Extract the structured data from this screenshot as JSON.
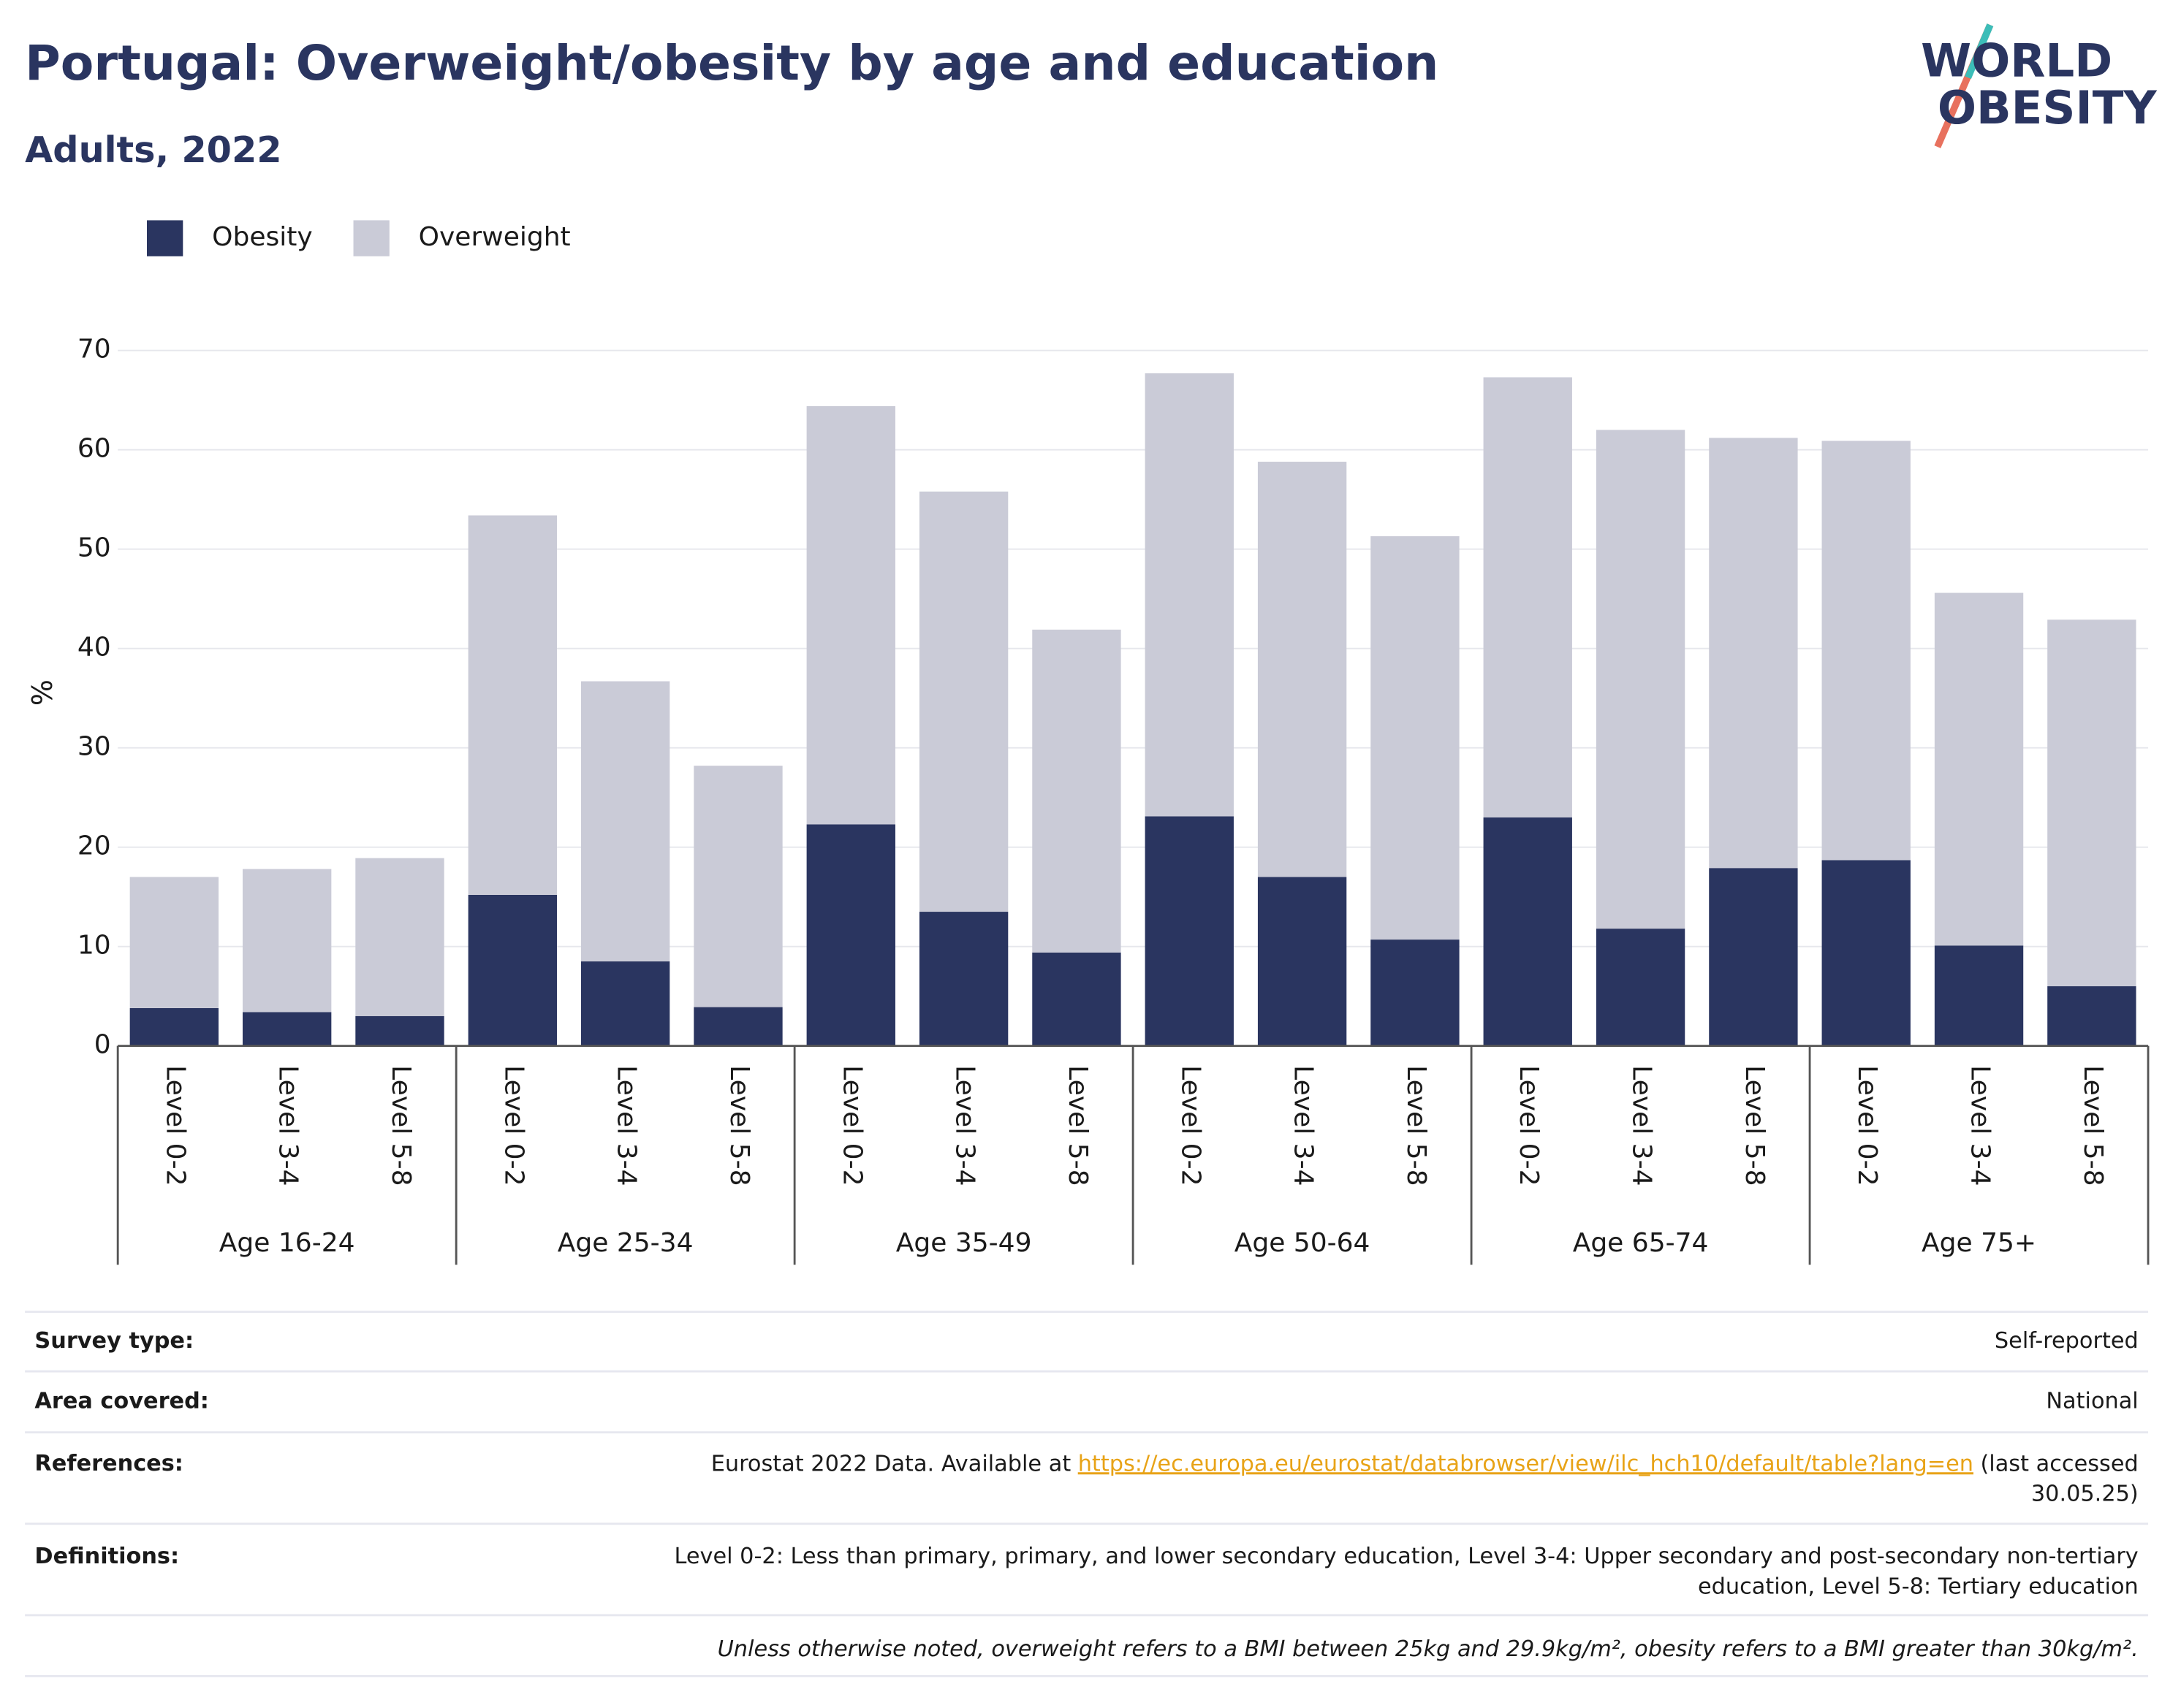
{
  "chart_data": {
    "type": "stacked-bar",
    "title": "Portugal: Overweight/obesity by age and education",
    "subtitle": "Adults, 2022",
    "y_label": "%",
    "categories": [
      "Level 0-2",
      "Level 3-4",
      "Level 5-8",
      "Level 0-2",
      "Level 3-4",
      "Level 5-8",
      "Level 0-2",
      "Level 3-4",
      "Level 5-8",
      "Level 0-2",
      "Level 3-4",
      "Level 5-8",
      "Level 0-2",
      "Level 3-4",
      "Level 5-8",
      "Level 0-2",
      "Level 3-4",
      "Level 5-8"
    ],
    "groups": [
      "Age 16-24",
      "Age 25-34",
      "Age 35-49",
      "Age 50-64",
      "Age 65-74",
      "Age 75+"
    ],
    "series": [
      {
        "name": "Obesity",
        "color": "#2a3560",
        "values": [
          3.8,
          3.4,
          3.0,
          15.2,
          8.5,
          3.9,
          22.3,
          13.5,
          9.4,
          23.1,
          17.0,
          10.7,
          23.0,
          11.8,
          17.9,
          18.7,
          10.1,
          6.0
        ]
      },
      {
        "name": "Overweight",
        "color": "#cacbd7",
        "values": [
          13.2,
          14.4,
          15.9,
          38.2,
          28.2,
          24.3,
          42.1,
          42.3,
          32.5,
          44.6,
          41.8,
          40.6,
          44.3,
          50.2,
          43.3,
          42.2,
          35.5,
          36.9
        ]
      }
    ],
    "ylim": [
      0,
      70
    ],
    "yticks": [
      0,
      10,
      20,
      30,
      40,
      50,
      60,
      70
    ],
    "grid": true
  },
  "logo": [
    "WORLD",
    "OBESITY"
  ],
  "table": {
    "rows": [
      {
        "label": "Survey type:",
        "value": "Self-reported"
      },
      {
        "label": "Area covered:",
        "value": "National"
      }
    ],
    "references": {
      "label": "References:",
      "text": "Eurostat 2022 Data. Available at",
      "link": "https://ec.europa.eu/eurostat/databrowser/view/ilc_hch10/default/table?lang=en",
      "after": [
        "(last accessed",
        "30.05.25)"
      ]
    },
    "definitions": {
      "label": "Definitions:",
      "lines": [
        "Level 0-2: Less than primary, primary, and lower secondary education, Level 3-4: Upper secondary and post-secondary non-tertiary",
        "education, Level 5-8: Tertiary education"
      ]
    },
    "note": "Unless otherwise noted, overweight refers to a BMI between 25kg and 29.9kg/m², obesity refers to a BMI greater than 30kg/m²."
  }
}
